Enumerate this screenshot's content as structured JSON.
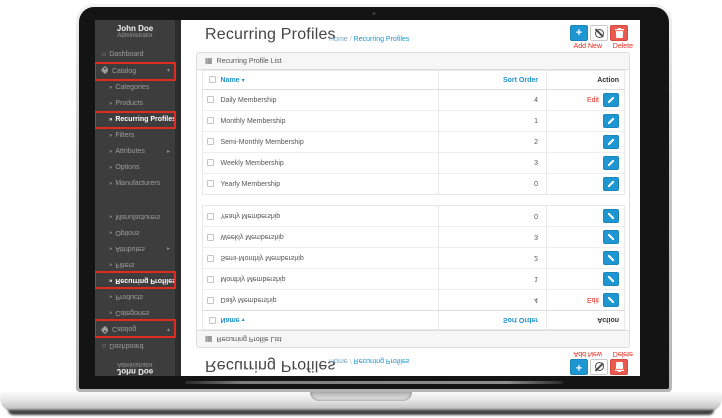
{
  "user": {
    "name": "John Doe",
    "role": "Administrator"
  },
  "sidebar": {
    "items": [
      {
        "label": "Dashboard",
        "icon": "home-icon",
        "level": 0
      },
      {
        "label": "Catalog",
        "icon": "tag-icon",
        "level": 0,
        "chevron": "down",
        "boxed": true
      },
      {
        "label": "Categories",
        "level": 1
      },
      {
        "label": "Products",
        "level": 1
      },
      {
        "label": "Recurring Profiles",
        "level": 1,
        "active": true,
        "boxed": true
      },
      {
        "label": "Filters",
        "level": 1
      },
      {
        "label": "Attributes",
        "level": 1,
        "chevron": "right"
      },
      {
        "label": "Options",
        "level": 1
      },
      {
        "label": "Manufacturers",
        "level": 1
      }
    ]
  },
  "page": {
    "title": "Recurring Profiles",
    "breadcrumb_home": "Home",
    "breadcrumb_separator": "/",
    "breadcrumb_current": "Recurring Profiles"
  },
  "toolbar": {
    "add_new_annotation": "Add New",
    "delete_annotation": "Delete",
    "plus_glyph": "+"
  },
  "panel": {
    "title": "Recurring Profile List"
  },
  "table": {
    "columns": {
      "name": "Name",
      "sort_order": "Sort Order",
      "action": "Action"
    },
    "sort_caret": "▾",
    "rows": [
      {
        "name": "Daily Membership",
        "sort_order": "4",
        "annotation": "Edit"
      },
      {
        "name": "Monthly Membership",
        "sort_order": "1",
        "annotation": ""
      },
      {
        "name": "Semi-Monthly Membership",
        "sort_order": "2",
        "annotation": ""
      },
      {
        "name": "Weekly Membership",
        "sort_order": "3",
        "annotation": ""
      },
      {
        "name": "Yearly Membership",
        "sort_order": "0",
        "annotation": ""
      }
    ]
  },
  "colors": {
    "accent_blue": "#1e96d2",
    "link_blue": "#1e91cf",
    "danger_red": "#e9594f",
    "annotation_red": "#e02b20",
    "sidebar_bg": "#3d3d3d"
  }
}
